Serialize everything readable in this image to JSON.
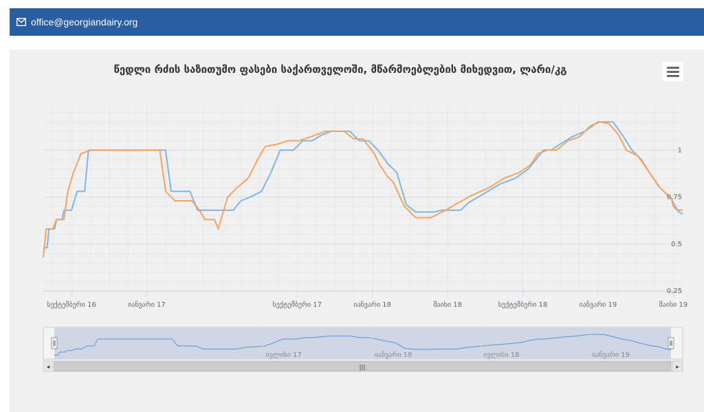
{
  "header": {
    "email": "office@georgiandairy.org",
    "icon": "envelope-icon"
  },
  "colors": {
    "header_bg": "#2a5da1",
    "series_blue": "#7cb5ec",
    "series_orange": "#f7a35c",
    "navigator_fill": "#c8d1e4"
  },
  "chart_data": {
    "type": "line",
    "title": "წედლი რძის საზითუმო ფასები საქართველოში, მწარმოებლების მიხედვით, ლარი/კგ",
    "x_range": [
      "2016-07",
      "2019-05"
    ],
    "ylim": [
      0.25,
      1.25
    ],
    "y_ticks": [
      "0.25",
      "0.5",
      "0.75",
      "1"
    ],
    "y_tick_values": [
      0.25,
      0.5,
      0.75,
      1
    ],
    "x_ticks": [
      {
        "label": "სექტემბერი 16",
        "month": 1.5
      },
      {
        "label": "იანვარი 17",
        "month": 5.5
      },
      {
        "label": "სექტემბერი 17",
        "month": 13.5
      },
      {
        "label": "იანვარი 18",
        "month": 17.5
      },
      {
        "label": "მაისი 18",
        "month": 21.5
      },
      {
        "label": "სექტემბერი 18",
        "month": 25.5
      },
      {
        "label": "იანვარი 19",
        "month": 29.5
      },
      {
        "label": "მაისი 19",
        "month": 33.5
      }
    ],
    "navigator_ticks": [
      {
        "label": "ივლისი 17",
        "month": 11.5
      },
      {
        "label": "იანვარი 18",
        "month": 17.5
      },
      {
        "label": "ივლისი 18",
        "month": 23.5
      },
      {
        "label": "იანვარი 19",
        "month": 29.5
      }
    ],
    "series": [
      {
        "name": "series-1",
        "color": "#7cb5ec",
        "points": [
          [
            0,
            0.48
          ],
          [
            0.2,
            0.48
          ],
          [
            0.3,
            0.58
          ],
          [
            0.6,
            0.58
          ],
          [
            0.7,
            0.63
          ],
          [
            1,
            0.63
          ],
          [
            1.1,
            0.68
          ],
          [
            1.5,
            0.68
          ],
          [
            1.8,
            0.78
          ],
          [
            2.2,
            0.78
          ],
          [
            2.4,
            1.0
          ],
          [
            6.5,
            1.0
          ],
          [
            6.8,
            0.78
          ],
          [
            7.8,
            0.78
          ],
          [
            8.2,
            0.68
          ],
          [
            10.1,
            0.68
          ],
          [
            10.5,
            0.73
          ],
          [
            11,
            0.75
          ],
          [
            11.6,
            0.78
          ],
          [
            12.1,
            0.88
          ],
          [
            12.6,
            1.0
          ],
          [
            13.3,
            1.0
          ],
          [
            13.8,
            1.05
          ],
          [
            14.3,
            1.05
          ],
          [
            14.8,
            1.08
          ],
          [
            15.3,
            1.1
          ],
          [
            16.3,
            1.1
          ],
          [
            16.8,
            1.05
          ],
          [
            17.3,
            1.05
          ],
          [
            17.8,
            1.0
          ],
          [
            18.3,
            0.93
          ],
          [
            18.8,
            0.88
          ],
          [
            19.3,
            0.71
          ],
          [
            19.8,
            0.67
          ],
          [
            20.8,
            0.67
          ],
          [
            21.2,
            0.68
          ],
          [
            22.2,
            0.68
          ],
          [
            22.6,
            0.72
          ],
          [
            23.3,
            0.76
          ],
          [
            24.3,
            0.82
          ],
          [
            25.1,
            0.85
          ],
          [
            25.8,
            0.9
          ],
          [
            26.2,
            0.95
          ],
          [
            26.6,
            1.0
          ],
          [
            27,
            1.0
          ],
          [
            27.3,
            1.02
          ],
          [
            28.1,
            1.07
          ],
          [
            28.8,
            1.1
          ],
          [
            29.5,
            1.15
          ],
          [
            30.3,
            1.15
          ],
          [
            30.8,
            1.08
          ],
          [
            31.3,
            1.0
          ],
          [
            31.8,
            0.95
          ],
          [
            32.3,
            0.87
          ],
          [
            32.8,
            0.8
          ],
          [
            33.2,
            0.76
          ],
          [
            33.4,
            0.74
          ],
          [
            33.6,
            0.7
          ],
          [
            33.8,
            0.67
          ],
          [
            34,
            0.66
          ]
        ]
      },
      {
        "name": "series-2",
        "color": "#f7a35c",
        "points": [
          [
            0,
            0.43
          ],
          [
            0.15,
            0.58
          ],
          [
            0.5,
            0.58
          ],
          [
            0.7,
            0.63
          ],
          [
            1.1,
            0.63
          ],
          [
            1.3,
            0.78
          ],
          [
            1.6,
            0.88
          ],
          [
            2,
            0.98
          ],
          [
            2.5,
            1.0
          ],
          [
            6.2,
            1.0
          ],
          [
            6.5,
            0.78
          ],
          [
            7,
            0.73
          ],
          [
            7.9,
            0.73
          ],
          [
            8.3,
            0.68
          ],
          [
            8.6,
            0.63
          ],
          [
            9.1,
            0.63
          ],
          [
            9.3,
            0.58
          ],
          [
            9.8,
            0.75
          ],
          [
            10.3,
            0.8
          ],
          [
            10.9,
            0.85
          ],
          [
            11.4,
            0.95
          ],
          [
            11.8,
            1.02
          ],
          [
            12.4,
            1.03
          ],
          [
            13,
            1.05
          ],
          [
            13.6,
            1.05
          ],
          [
            14.2,
            1.07
          ],
          [
            15,
            1.1
          ],
          [
            16,
            1.1
          ],
          [
            16.5,
            1.06
          ],
          [
            17,
            1.06
          ],
          [
            17.6,
            0.98
          ],
          [
            17.9,
            0.92
          ],
          [
            18.3,
            0.86
          ],
          [
            18.6,
            0.83
          ],
          [
            19.2,
            0.7
          ],
          [
            19.8,
            0.64
          ],
          [
            20.6,
            0.64
          ],
          [
            21.4,
            0.68
          ],
          [
            21.9,
            0.71
          ],
          [
            22.8,
            0.76
          ],
          [
            23.7,
            0.8
          ],
          [
            24.5,
            0.85
          ],
          [
            25.3,
            0.88
          ],
          [
            25.9,
            0.92
          ],
          [
            26.3,
            0.98
          ],
          [
            26.8,
            1.0
          ],
          [
            27.3,
            1.0
          ],
          [
            27.9,
            1.05
          ],
          [
            28.5,
            1.07
          ],
          [
            29.1,
            1.13
          ],
          [
            29.6,
            1.15
          ],
          [
            30.1,
            1.14
          ],
          [
            30.6,
            1.08
          ],
          [
            31,
            1.0
          ],
          [
            31.6,
            0.97
          ],
          [
            32.1,
            0.9
          ],
          [
            32.7,
            0.81
          ],
          [
            33.1,
            0.77
          ],
          [
            33.4,
            0.74
          ],
          [
            33.5,
            0.7
          ],
          [
            33.7,
            0.68
          ],
          [
            34,
            0.68
          ]
        ]
      }
    ],
    "legend": "none",
    "grid": true
  },
  "navigator": {
    "scroll_handle": "|||",
    "left_arrow": "◂",
    "right_arrow": "▸"
  }
}
